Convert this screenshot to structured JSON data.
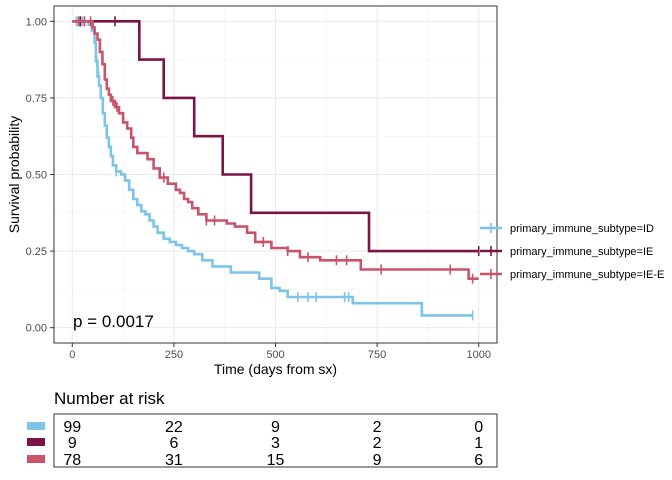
{
  "chart_data": {
    "type": "line",
    "title": "",
    "xlabel": "Time (days from sx)",
    "ylabel": "Survival probability",
    "xlim": [
      -45,
      1045
    ],
    "ylim": [
      -0.05,
      1.05
    ],
    "x_ticks": [
      0,
      250,
      500,
      750,
      1000
    ],
    "y_ticks": [
      0.0,
      0.25,
      0.5,
      0.75,
      1.0
    ],
    "x_tick_labels": [
      "0",
      "250",
      "500",
      "750",
      "1000"
    ],
    "y_tick_labels": [
      "0.00",
      "0.25",
      "0.50",
      "0.75",
      "1.00"
    ],
    "grid": true,
    "legend_position": "right",
    "annotation": "p = 0.0017",
    "series": [
      {
        "name": "primary_immune_subtype=ID",
        "color": "#7DC4E8",
        "steps": [
          [
            0,
            1.0
          ],
          [
            40,
            0.99
          ],
          [
            48,
            0.97
          ],
          [
            55,
            0.93
          ],
          [
            58,
            0.87
          ],
          [
            62,
            0.82
          ],
          [
            66,
            0.79
          ],
          [
            70,
            0.75
          ],
          [
            75,
            0.7
          ],
          [
            80,
            0.66
          ],
          [
            85,
            0.62
          ],
          [
            90,
            0.59
          ],
          [
            95,
            0.56
          ],
          [
            100,
            0.53
          ],
          [
            108,
            0.51
          ],
          [
            120,
            0.5
          ],
          [
            130,
            0.48
          ],
          [
            140,
            0.45
          ],
          [
            150,
            0.42
          ],
          [
            160,
            0.4
          ],
          [
            170,
            0.38
          ],
          [
            180,
            0.37
          ],
          [
            190,
            0.35
          ],
          [
            200,
            0.33
          ],
          [
            210,
            0.31
          ],
          [
            225,
            0.29
          ],
          [
            240,
            0.28
          ],
          [
            255,
            0.27
          ],
          [
            270,
            0.26
          ],
          [
            285,
            0.25
          ],
          [
            300,
            0.24
          ],
          [
            320,
            0.22
          ],
          [
            345,
            0.2
          ],
          [
            390,
            0.18
          ],
          [
            460,
            0.16
          ],
          [
            490,
            0.13
          ],
          [
            510,
            0.12
          ],
          [
            530,
            0.1
          ],
          [
            690,
            0.08
          ],
          [
            860,
            0.04
          ],
          [
            985,
            0.04
          ]
        ],
        "censor_times": [
          10,
          18,
          25,
          30,
          60,
          65,
          108,
          555,
          580,
          600,
          670,
          680,
          985
        ]
      },
      {
        "name": "primary_immune_subtype=IE",
        "color": "#7A1446",
        "steps": [
          [
            0,
            1.0
          ],
          [
            165,
            0.875
          ],
          [
            225,
            0.75
          ],
          [
            300,
            0.625
          ],
          [
            370,
            0.5
          ],
          [
            440,
            0.375
          ],
          [
            730,
            0.25
          ],
          [
            1000,
            0.25
          ]
        ],
        "censor_times": [
          20,
          105,
          1000
        ]
      },
      {
        "name": "primary_immune_subtype=IE-E",
        "color": "#C9546A",
        "steps": [
          [
            0,
            1.0
          ],
          [
            50,
            0.98
          ],
          [
            55,
            0.96
          ],
          [
            62,
            0.94
          ],
          [
            68,
            0.9
          ],
          [
            74,
            0.86
          ],
          [
            80,
            0.81
          ],
          [
            85,
            0.78
          ],
          [
            90,
            0.76
          ],
          [
            95,
            0.74
          ],
          [
            105,
            0.72
          ],
          [
            115,
            0.7
          ],
          [
            125,
            0.67
          ],
          [
            135,
            0.65
          ],
          [
            145,
            0.62
          ],
          [
            150,
            0.59
          ],
          [
            160,
            0.57
          ],
          [
            185,
            0.55
          ],
          [
            200,
            0.52
          ],
          [
            215,
            0.49
          ],
          [
            235,
            0.47
          ],
          [
            255,
            0.45
          ],
          [
            265,
            0.44
          ],
          [
            275,
            0.42
          ],
          [
            285,
            0.41
          ],
          [
            295,
            0.39
          ],
          [
            310,
            0.37
          ],
          [
            330,
            0.35
          ],
          [
            380,
            0.34
          ],
          [
            400,
            0.33
          ],
          [
            430,
            0.31
          ],
          [
            450,
            0.28
          ],
          [
            490,
            0.26
          ],
          [
            530,
            0.25
          ],
          [
            560,
            0.23
          ],
          [
            610,
            0.22
          ],
          [
            710,
            0.19
          ],
          [
            930,
            0.19
          ],
          [
            975,
            0.16
          ],
          [
            1000,
            0.16
          ]
        ],
        "censor_times": [
          15,
          30,
          45,
          100,
          110,
          225,
          330,
          350,
          470,
          530,
          580,
          650,
          675,
          760,
          930,
          985
        ]
      }
    ],
    "risk_table": {
      "title": "Number at risk",
      "time_points": [
        0,
        250,
        500,
        750,
        1000
      ],
      "rows": [
        {
          "name": "primary_immune_subtype=ID",
          "color": "#7DC4E8",
          "counts": [
            "99",
            "22",
            "9",
            "2",
            "0"
          ]
        },
        {
          "name": "primary_immune_subtype=IE",
          "color": "#7A1446",
          "counts": [
            "9",
            "6",
            "3",
            "2",
            "1"
          ]
        },
        {
          "name": "primary_immune_subtype=IE-E",
          "color": "#C9546A",
          "counts": [
            "78",
            "31",
            "15",
            "9",
            "6"
          ]
        }
      ]
    }
  }
}
